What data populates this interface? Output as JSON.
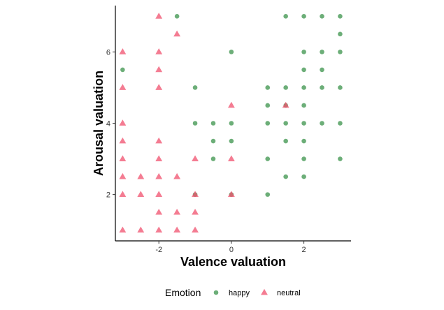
{
  "chart_data": {
    "type": "scatter",
    "title": "",
    "xlabel": "Valence valuation",
    "ylabel": "Arousal valuation",
    "xlim": [
      -3.2,
      3.3
    ],
    "ylim": [
      0.7,
      7.3
    ],
    "xticks": [
      -2,
      0,
      2
    ],
    "yticks": [
      2,
      4,
      6
    ],
    "grid": false,
    "legend": {
      "title": "Emotion",
      "position": "bottom"
    },
    "series": [
      {
        "name": "happy",
        "marker": "circle",
        "color": "#2e8b3e",
        "points": [
          [
            -1.5,
            7
          ],
          [
            1.5,
            7
          ],
          [
            2,
            7
          ],
          [
            2.5,
            7
          ],
          [
            3,
            7
          ],
          [
            3,
            6.5
          ],
          [
            0,
            6
          ],
          [
            2,
            6
          ],
          [
            2.5,
            6
          ],
          [
            3,
            6
          ],
          [
            -3,
            5.5
          ],
          [
            2,
            5.5
          ],
          [
            2.5,
            5.5
          ],
          [
            -1,
            5
          ],
          [
            1,
            5
          ],
          [
            1.5,
            5
          ],
          [
            2,
            5
          ],
          [
            2.5,
            5
          ],
          [
            3,
            5
          ],
          [
            1,
            4.5
          ],
          [
            1.5,
            4.5
          ],
          [
            2,
            4.5
          ],
          [
            -1,
            4
          ],
          [
            -0.5,
            4
          ],
          [
            0,
            4
          ],
          [
            1,
            4
          ],
          [
            1.5,
            4
          ],
          [
            2,
            4
          ],
          [
            2.5,
            4
          ],
          [
            3,
            4
          ],
          [
            -0.5,
            3.5
          ],
          [
            0,
            3.5
          ],
          [
            1.5,
            3.5
          ],
          [
            2,
            3.5
          ],
          [
            -0.5,
            3
          ],
          [
            1,
            3
          ],
          [
            2,
            3
          ],
          [
            3,
            3
          ],
          [
            1.5,
            2.5
          ],
          [
            2,
            2.5
          ],
          [
            -1,
            2
          ],
          [
            0,
            2
          ],
          [
            1,
            2
          ]
        ]
      },
      {
        "name": "neutral",
        "marker": "triangle",
        "color": "#f0506e",
        "points": [
          [
            -2,
            7
          ],
          [
            -1.5,
            6.5
          ],
          [
            -3,
            6
          ],
          [
            -2,
            6
          ],
          [
            -2,
            5.5
          ],
          [
            -3,
            5
          ],
          [
            -2,
            5
          ],
          [
            0,
            4.5
          ],
          [
            1.5,
            4.5
          ],
          [
            -3,
            4
          ],
          [
            -3,
            3.5
          ],
          [
            -2,
            3.5
          ],
          [
            -3,
            3
          ],
          [
            -2,
            3
          ],
          [
            -1,
            3
          ],
          [
            0,
            3
          ],
          [
            -3,
            2.5
          ],
          [
            -2.5,
            2.5
          ],
          [
            -2,
            2.5
          ],
          [
            -1.5,
            2.5
          ],
          [
            -3,
            2
          ],
          [
            -2.5,
            2
          ],
          [
            -2,
            2
          ],
          [
            -1,
            2
          ],
          [
            0,
            2
          ],
          [
            -2,
            1.5
          ],
          [
            -1.5,
            1.5
          ],
          [
            -1,
            1.5
          ],
          [
            -3,
            1
          ],
          [
            -2.5,
            1
          ],
          [
            -2,
            1
          ],
          [
            -1.5,
            1
          ],
          [
            -1,
            1
          ]
        ]
      }
    ]
  }
}
